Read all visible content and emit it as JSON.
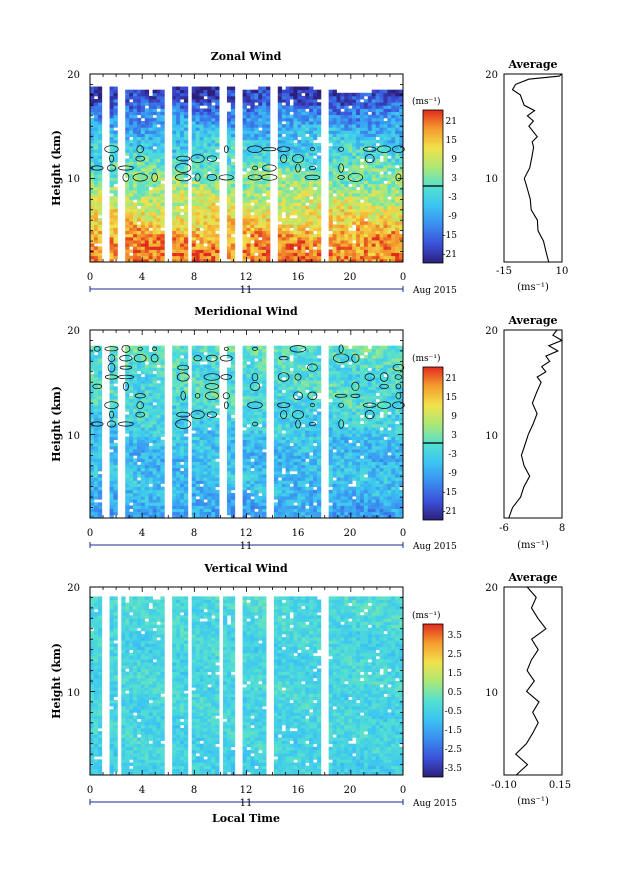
{
  "panels": [
    {
      "title": "Zonal Wind",
      "ylabel": "Height (km)",
      "y_ticks": [
        "20",
        "10"
      ],
      "x_ticks": [
        "0",
        "4",
        "8",
        "12",
        "16",
        "20",
        "0"
      ],
      "day_label": "11",
      "month_label": "Aug 2015",
      "colorbar": {
        "unit": "(ms⁻¹)",
        "ticks": [
          "21",
          "15",
          "9",
          "3",
          "-3",
          "-9",
          "-15",
          "-21"
        ]
      },
      "average": {
        "title": "Average",
        "y_ticks": [
          "20",
          "10"
        ],
        "x_ticks": [
          "-15",
          "10"
        ],
        "xlabel": "(ms⁻¹)"
      }
    },
    {
      "title": "Meridional Wind",
      "ylabel": "Height (km)",
      "y_ticks": [
        "20",
        "10"
      ],
      "x_ticks": [
        "0",
        "4",
        "8",
        "12",
        "16",
        "20",
        "0"
      ],
      "day_label": "11",
      "month_label": "Aug 2015",
      "colorbar": {
        "unit": "(ms⁻¹)",
        "ticks": [
          "21",
          "15",
          "9",
          "3",
          "-3",
          "-9",
          "-15",
          "-21"
        ]
      },
      "average": {
        "title": "Average",
        "y_ticks": [
          "20",
          "10"
        ],
        "x_ticks": [
          "-6",
          "8"
        ],
        "xlabel": "(ms⁻¹)"
      }
    },
    {
      "title": "Vertical Wind",
      "ylabel": "Height (km)",
      "y_ticks": [
        "20",
        "10"
      ],
      "x_ticks": [
        "0",
        "4",
        "8",
        "12",
        "16",
        "20",
        "0"
      ],
      "day_label": "11",
      "month_label": "Aug 2015",
      "xlabel": "Local Time",
      "colorbar": {
        "unit": "(ms⁻¹)",
        "ticks": [
          "3.5",
          "2.5",
          "1.5",
          "0.5",
          "-0.5",
          "-1.5",
          "-2.5",
          "-3.5"
        ]
      },
      "average": {
        "title": "Average",
        "y_ticks": [
          "20",
          "10"
        ],
        "x_ticks": [
          "-0.10",
          "0.15"
        ],
        "xlabel": "(ms⁻¹)"
      }
    }
  ],
  "chart_data": [
    {
      "type": "heatmap",
      "title": "Zonal Wind",
      "x_range_hours": [
        0,
        24
      ],
      "y_range_km": [
        2,
        20
      ],
      "color_range": [
        -24,
        24
      ],
      "gaps_hours": [
        [
          1.0,
          1.6
        ],
        [
          2.1,
          2.6
        ],
        [
          5.8,
          6.4
        ],
        [
          7.4,
          7.8
        ],
        [
          9.8,
          10.4
        ],
        [
          11.2,
          11.8
        ],
        [
          13.9,
          14.3
        ],
        [
          17.8,
          18.3
        ]
      ],
      "top_km_by_hour": [
        [
          0,
          18.8
        ],
        [
          4,
          18.5
        ],
        [
          8,
          18.8
        ],
        [
          12,
          18.6
        ],
        [
          16,
          18.8
        ],
        [
          20,
          18.2
        ],
        [
          24,
          18.6
        ]
      ],
      "profile": [
        [
          2,
          20
        ],
        [
          4,
          18
        ],
        [
          6,
          12
        ],
        [
          8,
          8
        ],
        [
          10,
          3
        ],
        [
          12,
          -2
        ],
        [
          14,
          -6
        ],
        [
          16,
          -12
        ],
        [
          18,
          -20
        ],
        [
          20,
          -24
        ]
      ],
      "noise": 6,
      "average_profile": {
        "xlim": [
          -15,
          10
        ],
        "points": [
          [
            4,
            2
          ],
          [
            3,
            3
          ],
          [
            2,
            4
          ],
          [
            0,
            5
          ],
          [
            -1,
            6
          ],
          [
            -3,
            7
          ],
          [
            -4,
            8
          ],
          [
            -5,
            9
          ],
          [
            -6,
            10
          ],
          [
            -4,
            11
          ],
          [
            -3,
            12
          ],
          [
            -2,
            13
          ],
          [
            -3,
            13.5
          ],
          [
            -1,
            14
          ],
          [
            -4,
            15
          ],
          [
            -2,
            15.5
          ],
          [
            -5,
            16
          ],
          [
            -2,
            16.5
          ],
          [
            -6,
            17
          ],
          [
            -8,
            18
          ],
          [
            -11,
            18.5
          ],
          [
            -10,
            19
          ],
          [
            -4,
            19.5
          ],
          [
            9,
            19.8
          ],
          [
            10,
            20
          ]
        ]
      }
    },
    {
      "type": "heatmap",
      "title": "Meridional Wind",
      "x_range_hours": [
        0,
        24
      ],
      "y_range_km": [
        2,
        20
      ],
      "color_range": [
        -24,
        24
      ],
      "gaps_hours": [
        [
          1.0,
          1.6
        ],
        [
          2.1,
          2.6
        ],
        [
          5.8,
          6.4
        ],
        [
          7.4,
          7.8
        ],
        [
          9.8,
          10.4
        ],
        [
          11.2,
          11.8
        ],
        [
          13.6,
          14.1
        ],
        [
          17.8,
          18.3
        ]
      ],
      "top_km_by_hour": [
        [
          0,
          18.5
        ],
        [
          4,
          18.6
        ],
        [
          8,
          18.5
        ],
        [
          12,
          18.6
        ],
        [
          16,
          18.4
        ],
        [
          20,
          18.4
        ],
        [
          24,
          18.6
        ]
      ],
      "profile": [
        [
          2,
          -10
        ],
        [
          4,
          -8
        ],
        [
          6,
          -6
        ],
        [
          8,
          -7
        ],
        [
          10,
          -5
        ],
        [
          12,
          -3
        ],
        [
          14,
          -1
        ],
        [
          16,
          -2
        ],
        [
          18,
          0
        ],
        [
          20,
          2
        ]
      ],
      "noise": 5,
      "average_profile": {
        "xlim": [
          -6,
          8
        ],
        "points": [
          [
            -5,
            2
          ],
          [
            -4,
            3
          ],
          [
            -2,
            4
          ],
          [
            -1,
            5
          ],
          [
            0,
            6
          ],
          [
            -1,
            7
          ],
          [
            -2,
            8
          ],
          [
            -1,
            9
          ],
          [
            0,
            10
          ],
          [
            1,
            11
          ],
          [
            2,
            12
          ],
          [
            1,
            13
          ],
          [
            2,
            14
          ],
          [
            3,
            15
          ],
          [
            2,
            15.5
          ],
          [
            4,
            16
          ],
          [
            3,
            16.5
          ],
          [
            5,
            17
          ],
          [
            4,
            17.5
          ],
          [
            7,
            18
          ],
          [
            5,
            18.5
          ],
          [
            8,
            19
          ],
          [
            6,
            19.5
          ],
          [
            7,
            20
          ]
        ]
      }
    },
    {
      "type": "heatmap",
      "title": "Vertical Wind",
      "x_range_hours": [
        0,
        24
      ],
      "y_range_km": [
        2,
        20
      ],
      "color_range": [
        -4,
        4
      ],
      "gaps_hours": [
        [
          1.0,
          1.5
        ],
        [
          2.1,
          2.5
        ],
        [
          5.8,
          6.3
        ],
        [
          7.4,
          7.8
        ],
        [
          9.8,
          10.3
        ],
        [
          11.2,
          11.7
        ],
        [
          13.6,
          14.0
        ],
        [
          17.8,
          18.2
        ]
      ],
      "top_km_by_hour": [
        [
          0,
          19.2
        ],
        [
          4,
          19.2
        ],
        [
          8,
          19.2
        ],
        [
          12,
          19.2
        ],
        [
          16,
          19.2
        ],
        [
          20,
          19.2
        ],
        [
          24,
          19.2
        ]
      ],
      "profile": [
        [
          2,
          -0.6
        ],
        [
          6,
          -0.5
        ],
        [
          10,
          -0.4
        ],
        [
          14,
          -0.5
        ],
        [
          18,
          -0.3
        ],
        [
          20,
          -0.3
        ]
      ],
      "noise": 0.6,
      "average_profile": {
        "xlim": [
          -0.1,
          0.15
        ],
        "points": [
          [
            -0.05,
            2
          ],
          [
            0.0,
            3
          ],
          [
            -0.05,
            4
          ],
          [
            0.0,
            5
          ],
          [
            0.02,
            6
          ],
          [
            0.05,
            7
          ],
          [
            0.02,
            8
          ],
          [
            0.05,
            9
          ],
          [
            0.0,
            10
          ],
          [
            0.03,
            11
          ],
          [
            0.0,
            12
          ],
          [
            0.02,
            13
          ],
          [
            0.05,
            14
          ],
          [
            0.02,
            15
          ],
          [
            0.08,
            16
          ],
          [
            0.05,
            17
          ],
          [
            0.02,
            18
          ],
          [
            0.04,
            19
          ],
          [
            0.0,
            20
          ]
        ]
      }
    }
  ]
}
